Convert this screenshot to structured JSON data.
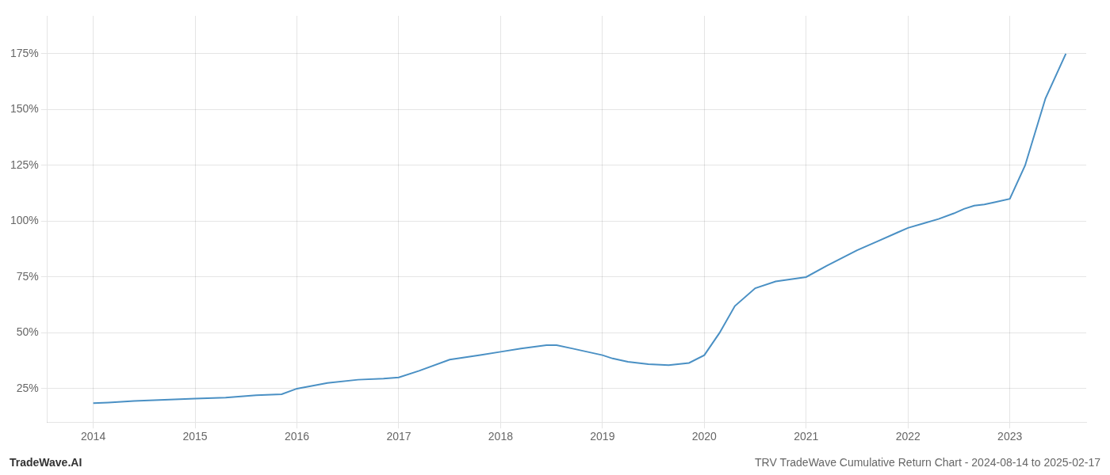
{
  "chart_data": {
    "type": "line",
    "title": "TRV TradeWave Cumulative Return Chart - 2024-08-14 to 2025-02-17",
    "subtitle": "TradeWave.AI",
    "x": [
      2014.0,
      2014.15,
      2014.4,
      2014.7,
      2015.0,
      2015.3,
      2015.6,
      2015.85,
      2016.0,
      2016.3,
      2016.6,
      2016.85,
      2017.0,
      2017.2,
      2017.5,
      2017.8,
      2018.0,
      2018.2,
      2018.45,
      2018.55,
      2018.7,
      2018.85,
      2019.0,
      2019.1,
      2019.25,
      2019.45,
      2019.65,
      2019.85,
      2020.0,
      2020.15,
      2020.3,
      2020.5,
      2020.7,
      2020.85,
      2021.0,
      2021.2,
      2021.5,
      2021.7,
      2021.9,
      2022.0,
      2022.15,
      2022.3,
      2022.45,
      2022.55,
      2022.65,
      2022.75,
      2022.85,
      2023.0,
      2023.15,
      2023.35,
      2023.55
    ],
    "values": [
      18.5,
      18.8,
      19.5,
      20.0,
      20.5,
      21.0,
      22.0,
      22.5,
      25.0,
      27.5,
      29.0,
      29.5,
      30.0,
      33.0,
      38.0,
      40.0,
      41.5,
      43.0,
      44.5,
      44.5,
      43.0,
      41.5,
      40.0,
      38.5,
      37.0,
      36.0,
      35.5,
      36.5,
      40.0,
      50.0,
      62.0,
      70.0,
      73.0,
      74.0,
      75.0,
      80.0,
      87.0,
      91.0,
      95.0,
      97.0,
      99.0,
      101.0,
      103.5,
      105.5,
      107.0,
      107.5,
      108.5,
      110.0,
      125.0,
      155.0,
      175.0
    ],
    "color": "#4a90c4",
    "xlim": [
      2013.55,
      2023.75
    ],
    "xticks": [
      2014,
      2015,
      2016,
      2017,
      2018,
      2019,
      2020,
      2021,
      2022,
      2023
    ],
    "ylim": [
      10,
      192
    ],
    "yticks": [
      {
        "value": 25,
        "label": "25%"
      },
      {
        "value": 50,
        "label": "50%"
      },
      {
        "value": 75,
        "label": "75%"
      },
      {
        "value": 100,
        "label": "100%"
      },
      {
        "value": 125,
        "label": "125%"
      },
      {
        "value": 150,
        "label": "150%"
      },
      {
        "value": 175,
        "label": "175%"
      }
    ],
    "grid": true
  }
}
